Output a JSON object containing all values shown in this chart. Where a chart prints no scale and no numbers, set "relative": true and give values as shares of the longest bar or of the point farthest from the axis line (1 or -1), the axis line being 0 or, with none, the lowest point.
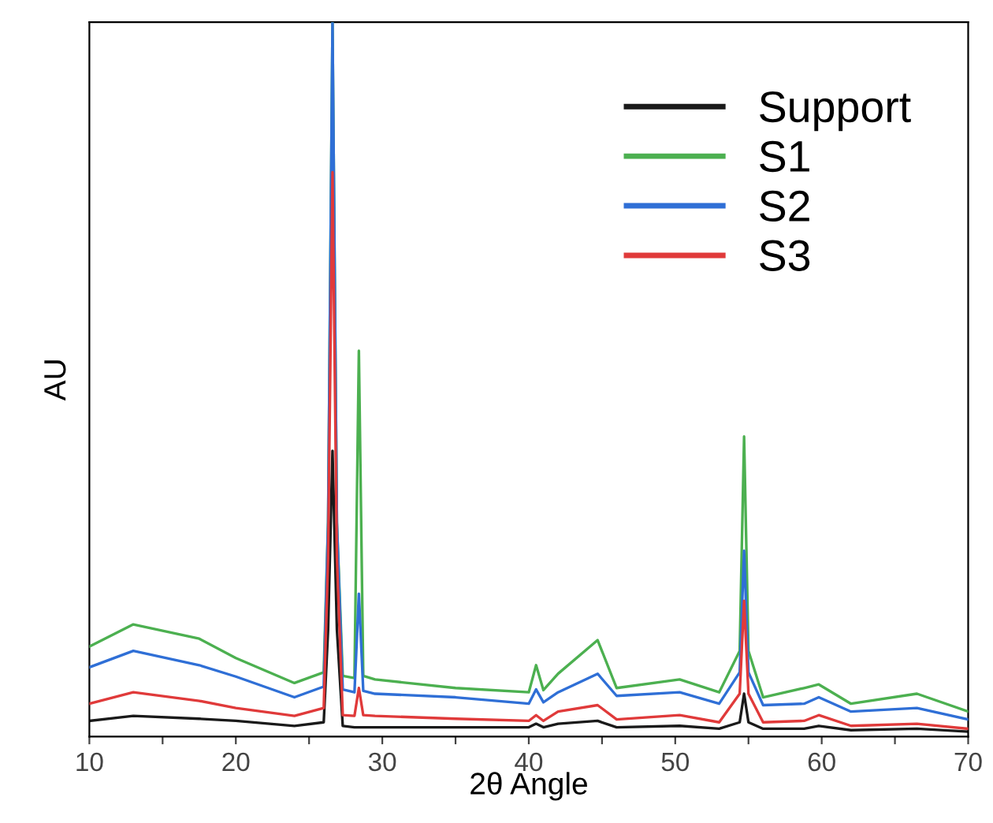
{
  "chart_data": {
    "type": "line",
    "relative": true,
    "xlabel": "2θ Angle",
    "ylabel": "AU",
    "legend": "top right",
    "tick_labels": "x",
    "grid": false,
    "marker": "none",
    "line_style": "solid",
    "xlim": [
      10,
      70
    ],
    "xticks": [
      10,
      {
        "value": 15,
        "label": null
      },
      20,
      {
        "value": 25,
        "label": null
      },
      30,
      {
        "value": 35,
        "label": null
      },
      40,
      {
        "value": 45,
        "label": null
      },
      50,
      {
        "value": 55,
        "label": null
      },
      60,
      {
        "value": 65,
        "label": null
      },
      70
    ],
    "x": [
      10,
      13,
      17.5,
      20,
      24,
      26,
      26.3,
      26.6,
      26.9,
      27.3,
      28.1,
      28.4,
      28.7,
      29.5,
      35,
      40,
      40.5,
      41,
      42,
      44.7,
      46,
      50.3,
      53,
      54.4,
      54.7,
      55,
      56,
      58.8,
      59.8,
      62,
      66.5,
      70
    ],
    "series": [
      {
        "name": "Support",
        "color": "#1a1a1a",
        "values": [
          0.022,
          0.029,
          0.025,
          0.022,
          0.015,
          0.02,
          0.15,
          0.4,
          0.15,
          0.015,
          0.013,
          0.013,
          0.013,
          0.013,
          0.013,
          0.013,
          0.018,
          0.013,
          0.018,
          0.022,
          0.013,
          0.015,
          0.011,
          0.02,
          0.06,
          0.02,
          0.011,
          0.011,
          0.015,
          0.009,
          0.011,
          0.007
        ]
      },
      {
        "name": "S1",
        "color": "#4cb050",
        "values": [
          0.126,
          0.157,
          0.137,
          0.11,
          0.075,
          0.09,
          0.3,
          1,
          0.3,
          0.085,
          0.082,
          0.54,
          0.085,
          0.08,
          0.068,
          0.062,
          0.1,
          0.065,
          0.088,
          0.135,
          0.068,
          0.08,
          0.062,
          0.12,
          0.42,
          0.12,
          0.055,
          0.068,
          0.073,
          0.046,
          0.06,
          0.035
        ]
      },
      {
        "name": "S2",
        "color": "#2f6fd6",
        "values": [
          0.097,
          0.12,
          0.1,
          0.084,
          0.055,
          0.07,
          0.3,
          1,
          0.3,
          0.066,
          0.062,
          0.2,
          0.064,
          0.06,
          0.055,
          0.046,
          0.066,
          0.048,
          0.062,
          0.088,
          0.057,
          0.062,
          0.046,
          0.09,
          0.26,
          0.09,
          0.044,
          0.046,
          0.055,
          0.035,
          0.04,
          0.024
        ]
      },
      {
        "name": "S3",
        "color": "#e03a3a",
        "values": [
          0.046,
          0.062,
          0.05,
          0.04,
          0.029,
          0.04,
          0.25,
          0.79,
          0.25,
          0.03,
          0.029,
          0.068,
          0.03,
          0.029,
          0.025,
          0.022,
          0.03,
          0.022,
          0.035,
          0.044,
          0.024,
          0.03,
          0.02,
          0.06,
          0.19,
          0.06,
          0.02,
          0.022,
          0.03,
          0.015,
          0.018,
          0.011
        ]
      }
    ]
  }
}
